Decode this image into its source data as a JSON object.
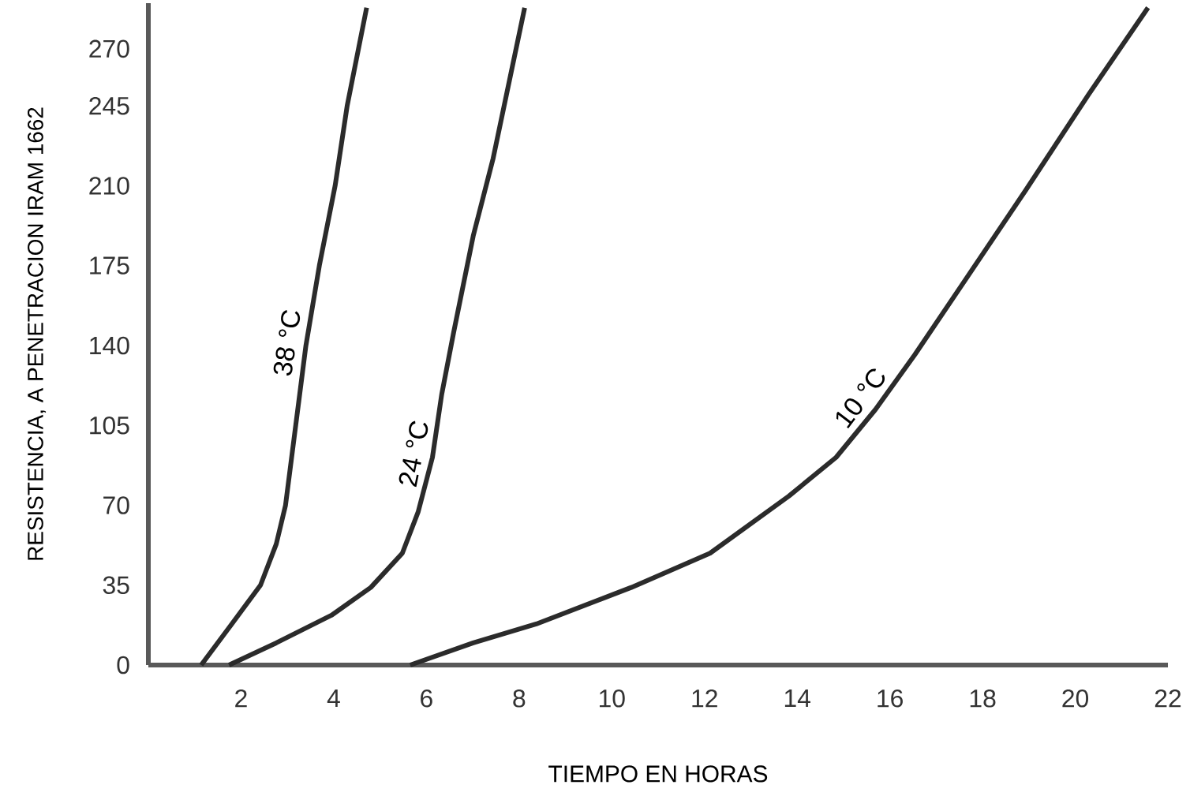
{
  "chart_data": {
    "type": "line",
    "xlabel": "TIEMPO EN HORAS",
    "ylabel": "RESISTENCIA, A PENETRACION IRAM 1662",
    "xlim": [
      0,
      22
    ],
    "ylim": [
      0,
      290
    ],
    "xticks": [
      2,
      4,
      6,
      8,
      10,
      12,
      14,
      16,
      18,
      20,
      22
    ],
    "yticks": [
      0,
      35,
      70,
      105,
      140,
      175,
      210,
      245,
      270
    ],
    "grid": false,
    "legend": false,
    "marker": "none",
    "line_style": "solid",
    "series": [
      {
        "name": "38 °C",
        "color": "#2b2b2b",
        "x": [
          1.14,
          1.8,
          2.42,
          2.76,
          2.96,
          3.18,
          3.4,
          3.69,
          4.03,
          4.29,
          4.71
        ],
        "values": [
          0,
          18,
          35,
          53,
          70,
          105,
          140,
          175,
          210,
          245,
          288
        ]
      },
      {
        "name": "24 °C",
        "color": "#2b2b2b",
        "x": [
          1.74,
          2.76,
          3.95,
          4.8,
          5.48,
          5.82,
          6.13,
          6.33,
          6.59,
          7.01,
          7.44,
          8.12
        ],
        "values": [
          0,
          9.7,
          21.8,
          34,
          49,
          67,
          91,
          118.6,
          146,
          188,
          222,
          288
        ]
      },
      {
        "name": "10 °C",
        "color": "#2b2b2b",
        "x": [
          5.65,
          7.01,
          8.37,
          10.42,
          12.12,
          13.82,
          14.84,
          15.69,
          16.54,
          17.57,
          18.93,
          20.29,
          21.57
        ],
        "values": [
          0,
          9.7,
          18,
          34,
          49,
          74,
          91,
          112,
          136,
          167,
          208,
          250,
          288
        ]
      }
    ]
  }
}
